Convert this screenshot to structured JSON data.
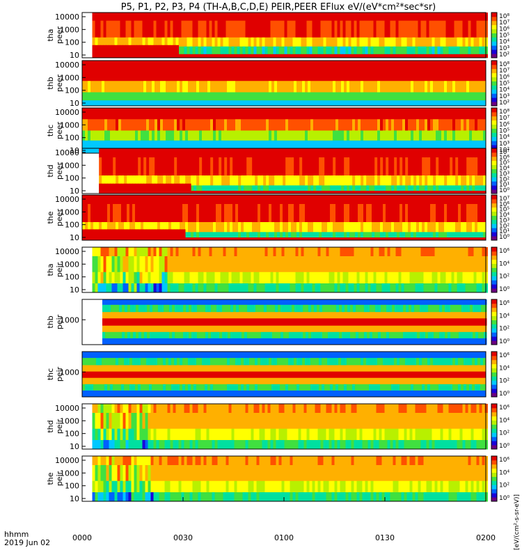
{
  "chart_data": {
    "type": "heatmap",
    "title": "P5, P1, P2, P3, P4 (TH-A,B,C,D,E) PEIR,PEER EFlux eV/(eV*cm²*sec*sr)",
    "x_tick_labels": [
      "0000",
      "0030",
      "0100",
      "0130",
      "0200"
    ],
    "x_range_minutes": [
      0,
      120
    ],
    "time_label": "hhmm",
    "date_label": "2019 Jun 02",
    "colorbar_label": "[eV/(cm²-s-sr-eV)]",
    "palette": [
      "#6a0080",
      "#1a00d8",
      "#0060ff",
      "#00c8ff",
      "#00e0a0",
      "#40e040",
      "#b8f000",
      "#ffff00",
      "#ffb000",
      "#ff5000",
      "#e00000"
    ],
    "panels": [
      {
        "name": "tha-peer",
        "label_top": "tha",
        "label_bottom": "peer",
        "yticks": [
          "10",
          "100",
          "1000",
          "10000"
        ],
        "cbar_ticks": [
          "10⁸",
          "10⁷",
          "10⁶",
          "10⁵",
          "10⁴",
          "10³",
          "10²"
        ],
        "start_minute": 3,
        "bands": [
          [
            0,
            0.18,
            10.2,
            10.2
          ],
          [
            0.18,
            0.55,
            9.4,
            9.6
          ],
          [
            0.55,
            0.75,
            7.0,
            8.2
          ],
          [
            0.75,
            1.0,
            3.2,
            5.5
          ]
        ],
        "low_band": {
          "top_before": 0.28,
          "top_after": 0.08,
          "change_minute": 28
        }
      },
      {
        "name": "thb-peer",
        "label_top": "thb",
        "label_bottom": "peer",
        "yticks": [
          "10",
          "100",
          "1000",
          "10000"
        ],
        "cbar_ticks": [
          "10⁸",
          "10⁷",
          "10⁶",
          "10⁵",
          "10⁴",
          "10³",
          "10²"
        ],
        "start_minute": 0,
        "bands": [
          [
            0,
            0.45,
            9.5,
            10.2
          ],
          [
            0.45,
            0.7,
            7.2,
            8.5
          ],
          [
            0.7,
            0.88,
            4.5,
            5.5
          ],
          [
            0.88,
            1.0,
            3.0,
            3.5
          ]
        ],
        "low_band": null
      },
      {
        "name": "thc-peer",
        "label_top": "thc",
        "label_bottom": "peer",
        "yticks": [
          "10",
          "100",
          "1000",
          "10000"
        ],
        "cbar_ticks": [
          "10⁸",
          "10⁷",
          "10⁶",
          "10⁵",
          "10⁴",
          "10³",
          "10²"
        ],
        "start_minute": 0,
        "bands": [
          [
            0,
            0.25,
            10.3,
            10.5
          ],
          [
            0.25,
            0.5,
            8.3,
            9.6
          ],
          [
            0.5,
            0.72,
            5.2,
            6.5
          ],
          [
            0.72,
            1.0,
            2.5,
            3.5
          ]
        ],
        "low_band": null
      },
      {
        "name": "thd-peer",
        "label_top": "thd",
        "label_bottom": "peer",
        "yticks": [
          "10",
          "100",
          "1000",
          "10000"
        ],
        "cbar_ticks": [
          "10⁷",
          "10⁶",
          "10⁵",
          "10⁴",
          "10³",
          "10²",
          "10¹",
          "10⁰"
        ],
        "start_minute": 5,
        "bands": [
          [
            0,
            0.2,
            10.2,
            10.2
          ],
          [
            0.2,
            0.6,
            9.4,
            9.7
          ],
          [
            0.6,
            0.82,
            6.8,
            8.0
          ],
          [
            0.82,
            1.0,
            3.5,
            5.0
          ]
        ],
        "low_band": {
          "top_before": 0.22,
          "top_after": 0.06,
          "change_minute": 32
        }
      },
      {
        "name": "the-peer",
        "label_top": "the",
        "label_bottom": "peer",
        "yticks": [
          "10",
          "100",
          "1000",
          "10000"
        ],
        "cbar_ticks": [
          "10⁷",
          "10⁶",
          "10⁵",
          "10⁴",
          "10³",
          "10²",
          "10¹",
          "10⁰"
        ],
        "start_minute": 0,
        "bands": [
          [
            0,
            0.2,
            10.2,
            10.2
          ],
          [
            0.2,
            0.6,
            9.4,
            9.7
          ],
          [
            0.6,
            0.82,
            6.8,
            8.0
          ],
          [
            0.82,
            1.0,
            3.5,
            5.0
          ]
        ],
        "low_band": {
          "top_before": 0.24,
          "top_after": 0.06,
          "change_minute": 30
        }
      },
      {
        "name": "tha-peir",
        "label_top": "tha",
        "label_bottom": "peir",
        "yticks": [
          "10",
          "100",
          "1000",
          "10000"
        ],
        "cbar_ticks": [
          "10⁶",
          "10⁴",
          "10²",
          "10⁰"
        ],
        "start_minute": 3,
        "bands": [
          [
            0,
            0.2,
            8.3,
            8.6
          ],
          [
            0.2,
            0.55,
            7.6,
            8.0
          ],
          [
            0.55,
            0.8,
            6.2,
            7.0
          ],
          [
            0.8,
            1.0,
            3.8,
            5.2
          ]
        ],
        "low_band": null,
        "noisy_before_minute": 25
      },
      {
        "name": "thb-peir",
        "label_top": "thb",
        "label_bottom": "peir",
        "yticks": [
          "1000"
        ],
        "cbar_ticks": [
          "10⁶",
          "10⁴",
          "10²",
          "10⁰"
        ],
        "start_minute": 6,
        "bands": [
          [
            0,
            0.12,
            1.5,
            2.5
          ],
          [
            0.12,
            0.28,
            4.0,
            5.0
          ],
          [
            0.28,
            0.42,
            7.5,
            8.2
          ],
          [
            0.42,
            0.58,
            9.6,
            10.0
          ],
          [
            0.58,
            0.72,
            7.5,
            8.2
          ],
          [
            0.72,
            0.86,
            4.0,
            5.0
          ],
          [
            0.86,
            1.0,
            1.5,
            2.5
          ]
        ],
        "low_band": null
      },
      {
        "name": "thc-peir",
        "label_top": "thc",
        "label_bottom": "peir",
        "yticks": [
          "1000"
        ],
        "cbar_ticks": [
          "10⁶",
          "10⁴",
          "10²",
          "10⁰"
        ],
        "start_minute": 0,
        "bands": [
          [
            0,
            0.14,
            1.5,
            2.5
          ],
          [
            0.14,
            0.3,
            4.0,
            5.0
          ],
          [
            0.3,
            0.44,
            7.5,
            8.2
          ],
          [
            0.44,
            0.58,
            9.6,
            10.0
          ],
          [
            0.58,
            0.72,
            7.5,
            8.2
          ],
          [
            0.72,
            0.86,
            4.0,
            5.0
          ],
          [
            0.86,
            1.0,
            1.5,
            2.5
          ]
        ],
        "low_band": null
      },
      {
        "name": "thd-peir",
        "label_top": "thd",
        "label_bottom": "peir",
        "yticks": [
          "10",
          "100",
          "1000",
          "10000"
        ],
        "cbar_ticks": [
          "10⁶",
          "10⁴",
          "10²",
          "10⁰"
        ],
        "start_minute": 3,
        "bands": [
          [
            0,
            0.2,
            8.3,
            8.6
          ],
          [
            0.2,
            0.55,
            7.6,
            8.0
          ],
          [
            0.55,
            0.8,
            6.2,
            7.0
          ],
          [
            0.8,
            1.0,
            3.8,
            5.2
          ]
        ],
        "low_band": null,
        "noisy_before_minute": 20
      },
      {
        "name": "the-peir",
        "label_top": "the",
        "label_bottom": "peir",
        "yticks": [
          "10",
          "100",
          "1000",
          "10000"
        ],
        "cbar_ticks": [
          "10⁶",
          "10⁴",
          "10²",
          "10⁰"
        ],
        "start_minute": 3,
        "bands": [
          [
            0,
            0.2,
            8.3,
            8.6
          ],
          [
            0.2,
            0.55,
            7.6,
            8.0
          ],
          [
            0.55,
            0.8,
            6.2,
            7.0
          ],
          [
            0.8,
            1.0,
            3.8,
            5.2
          ]
        ],
        "low_band": null,
        "noisy_before_minute": 22
      }
    ]
  }
}
